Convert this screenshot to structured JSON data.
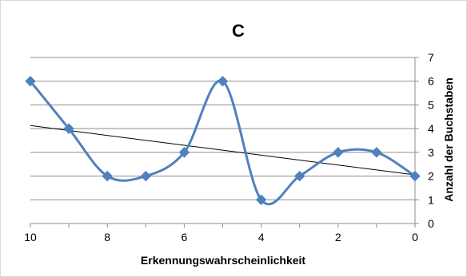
{
  "chart_data": {
    "type": "line",
    "title": "C",
    "xlabel": "Erkennungswahrscheinlichkeit",
    "ylabel": "Anzahl der Buchstaben",
    "xlim": [
      10,
      0
    ],
    "ylim": [
      0,
      7
    ],
    "x_ticks": [
      "10",
      "8",
      "6",
      "4",
      "2",
      "0"
    ],
    "y_ticks": [
      "0",
      "1",
      "2",
      "3",
      "4",
      "5",
      "6",
      "7"
    ],
    "y_axis_side": "right",
    "grid": "horizontal",
    "legend": "none",
    "smooth": true,
    "series": [
      {
        "x": [
          10,
          9,
          8,
          7,
          6,
          5,
          4,
          3,
          2,
          1,
          0
        ],
        "values": [
          6,
          4,
          2,
          2,
          3,
          6,
          1,
          2,
          3,
          3,
          2
        ],
        "color": "#4F81BD",
        "marker": "diamond"
      }
    ],
    "trendline": {
      "type": "linear",
      "color": "#000000",
      "from": [
        10,
        4.13
      ],
      "to": [
        0,
        2.05
      ]
    }
  }
}
